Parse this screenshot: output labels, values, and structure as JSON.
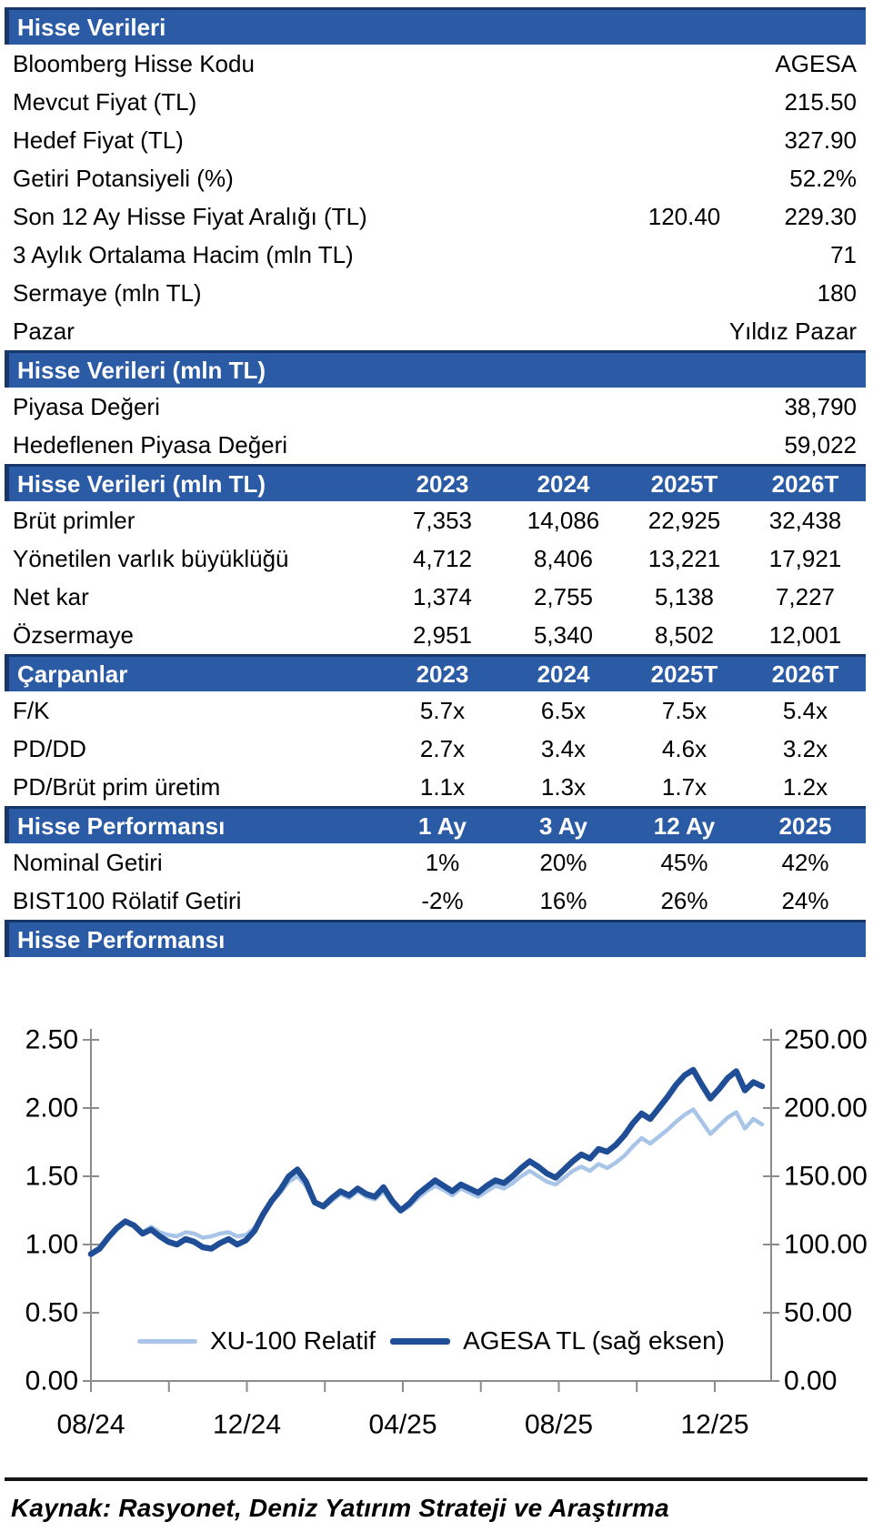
{
  "colors": {
    "header_bar": "#2B5BA5",
    "header_border": "#17376B",
    "series_dark": "#1F4E96",
    "series_light": "#A8C5E8",
    "axis": "#8C8C8C",
    "text": "#000000"
  },
  "table": {
    "sections": [
      {
        "type": "kv",
        "header": {
          "label": "Hisse Verileri",
          "columns": []
        },
        "rows": [
          {
            "label": "Bloomberg Hisse Kodu",
            "value": "AGESA"
          },
          {
            "label": "Mevcut Fiyat (TL)",
            "value": "215.50"
          },
          {
            "label": "Hedef Fiyat (TL)",
            "value": "327.90"
          },
          {
            "label": "Getiri Potansiyeli (%)",
            "value": "52.2%"
          },
          {
            "label": "Son 12 Ay Hisse Fiyat Aralığı (TL)",
            "value2": "120.40",
            "value": "229.30"
          },
          {
            "label": "3 Aylık Ortalama Hacim (mln TL)",
            "value": "71"
          },
          {
            "label": "Sermaye (mln TL)",
            "value": "180"
          },
          {
            "label": "Pazar",
            "value": "Yıldız Pazar"
          }
        ]
      },
      {
        "type": "kv",
        "header": {
          "label": "Hisse Verileri (mln TL)",
          "columns": []
        },
        "rows": [
          {
            "label": "Piyasa Değeri",
            "value": "38,790"
          },
          {
            "label": "Hedeflenen Piyasa Değeri",
            "value": "59,022"
          }
        ]
      },
      {
        "type": "cols",
        "header": {
          "label": "Hisse Verileri (mln TL)",
          "columns": [
            "2023",
            "2024",
            "2025T",
            "2026T"
          ]
        },
        "rows": [
          {
            "label": "Brüt primler",
            "values": [
              "7,353",
              "14,086",
              "22,925",
              "32,438"
            ]
          },
          {
            "label": "Yönetilen varlık büyüklüğü",
            "values": [
              "4,712",
              "8,406",
              "13,221",
              "17,921"
            ]
          },
          {
            "label": "Net kar",
            "values": [
              "1,374",
              "2,755",
              "5,138",
              "7,227"
            ]
          },
          {
            "label": "Özsermaye",
            "values": [
              "2,951",
              "5,340",
              "8,502",
              "12,001"
            ]
          }
        ]
      },
      {
        "type": "cols",
        "header": {
          "label": "Çarpanlar",
          "columns": [
            "2023",
            "2024",
            "2025T",
            "2026T"
          ]
        },
        "rows": [
          {
            "label": "F/K",
            "values": [
              "5.7x",
              "6.5x",
              "7.5x",
              "5.4x"
            ]
          },
          {
            "label": "PD/DD",
            "values": [
              "2.7x",
              "3.4x",
              "4.6x",
              "3.2x"
            ]
          },
          {
            "label": "PD/Brüt prim üretim",
            "values": [
              "1.1x",
              "1.3x",
              "1.7x",
              "1.2x"
            ]
          }
        ]
      },
      {
        "type": "cols",
        "header": {
          "label": "Hisse Performansı",
          "columns": [
            "1 Ay",
            "3 Ay",
            "12 Ay",
            "2025"
          ]
        },
        "rows": [
          {
            "label": "Nominal Getiri",
            "values": [
              "1%",
              "20%",
              "45%",
              "42%"
            ]
          },
          {
            "label": "BIST100 Rölatif Getiri",
            "values": [
              "-2%",
              "16%",
              "26%",
              "24%"
            ]
          }
        ]
      },
      {
        "type": "banner",
        "header": {
          "label": "Hisse Performansı",
          "columns": []
        },
        "rows": []
      }
    ]
  },
  "chart_data": {
    "type": "line",
    "title": "Hisse Performansı",
    "grid": false,
    "legend_position": "bottom-inside",
    "x_axis": {
      "labels": [
        "08/24",
        "12/24",
        "04/25",
        "08/25",
        "12/25"
      ],
      "start": "08/24",
      "end": "01/26",
      "minor_ticks_per_label": 2
    },
    "left_axis": {
      "ticks": [
        "2.50",
        "2.00",
        "1.50",
        "1.00",
        "0.50",
        "0.00"
      ],
      "min": 0,
      "max": 2.5
    },
    "right_axis": {
      "ticks": [
        "250.00",
        "200.00",
        "150.00",
        "100.00",
        "50.00",
        "0.00"
      ],
      "min": 0,
      "max": 250
    },
    "series": [
      {
        "name": "XU-100 Relatif",
        "axis": "left",
        "color": "#A8C5E8",
        "stroke_width": 4.5,
        "values": [
          0.93,
          0.96,
          1.04,
          1.12,
          1.16,
          1.14,
          1.09,
          1.13,
          1.09,
          1.07,
          1.06,
          1.09,
          1.08,
          1.05,
          1.06,
          1.08,
          1.09,
          1.06,
          1.07,
          1.12,
          1.22,
          1.31,
          1.38,
          1.46,
          1.5,
          1.43,
          1.3,
          1.27,
          1.32,
          1.37,
          1.34,
          1.39,
          1.35,
          1.33,
          1.39,
          1.3,
          1.24,
          1.28,
          1.34,
          1.39,
          1.43,
          1.4,
          1.36,
          1.41,
          1.38,
          1.35,
          1.39,
          1.43,
          1.41,
          1.45,
          1.5,
          1.54,
          1.5,
          1.46,
          1.44,
          1.49,
          1.54,
          1.57,
          1.54,
          1.59,
          1.56,
          1.6,
          1.65,
          1.72,
          1.78,
          1.74,
          1.79,
          1.84,
          1.9,
          1.95,
          1.99,
          1.9,
          1.81,
          1.87,
          1.93,
          1.97,
          1.85,
          1.92,
          1.88
        ]
      },
      {
        "name": "AGESA TL (sağ eksen)",
        "axis": "right",
        "color": "#1F4E96",
        "stroke_width": 6.5,
        "values": [
          93,
          97,
          105,
          112,
          117,
          114,
          108,
          111,
          106,
          102,
          100,
          104,
          102,
          98,
          97,
          101,
          104,
          100,
          103,
          110,
          122,
          132,
          140,
          150,
          155,
          146,
          131,
          128,
          134,
          139,
          136,
          141,
          137,
          135,
          142,
          132,
          125,
          130,
          137,
          142,
          147,
          143,
          139,
          144,
          141,
          138,
          143,
          147,
          145,
          150,
          156,
          161,
          157,
          152,
          149,
          155,
          161,
          166,
          163,
          170,
          168,
          173,
          180,
          189,
          196,
          192,
          200,
          208,
          217,
          224,
          228,
          217,
          207,
          214,
          222,
          227,
          213,
          219,
          216
        ]
      }
    ]
  },
  "footer": {
    "source": "Kaynak: Rasyonet, Deniz Yatırım Strateji ve Araştırma"
  }
}
